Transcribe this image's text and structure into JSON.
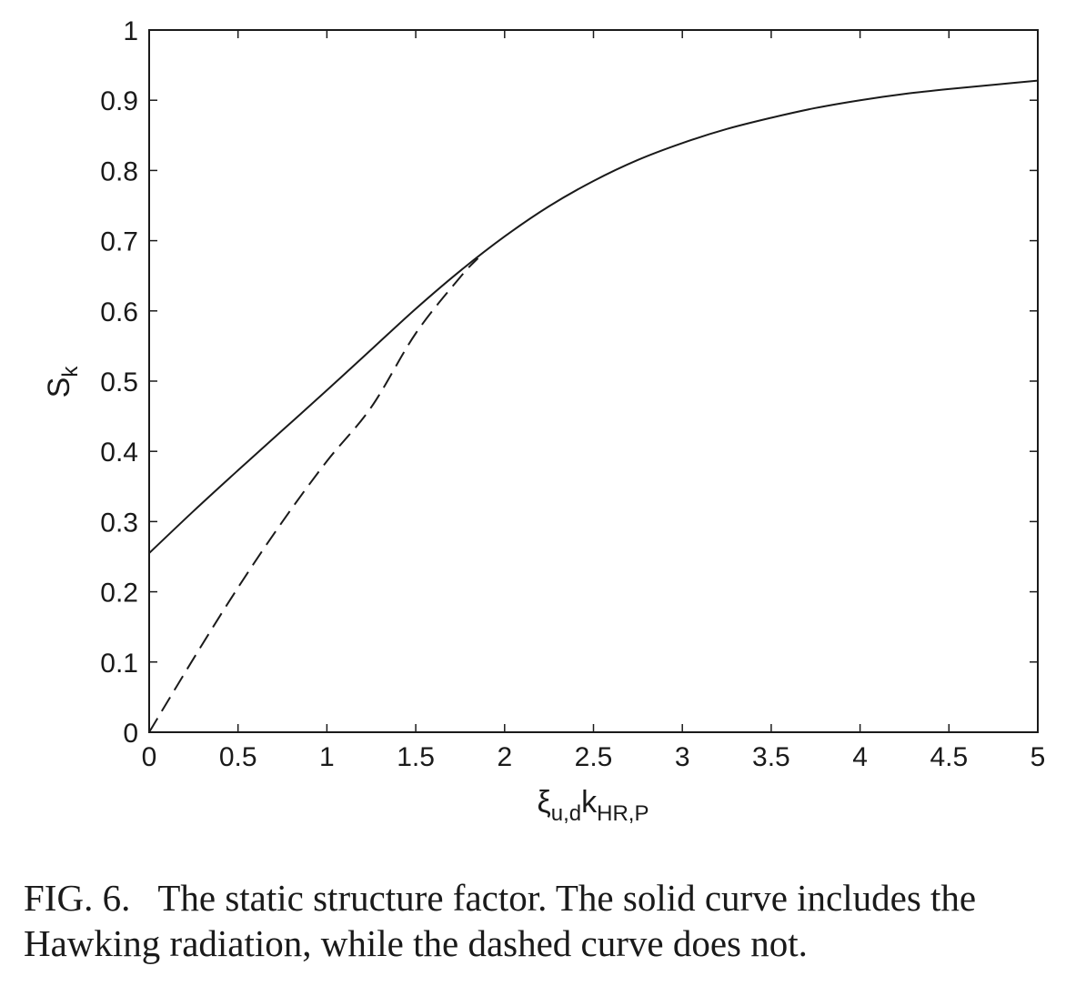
{
  "chart_data": {
    "type": "line",
    "title": "",
    "xlabel": {
      "base": "ξ",
      "sub1": "u,d",
      "mid": "k",
      "sub2": "HR,P"
    },
    "ylabel": {
      "base": "S",
      "sub": "k"
    },
    "xlim": [
      0,
      5
    ],
    "ylim": [
      0,
      1
    ],
    "xticks": [
      "0",
      "0.5",
      "1",
      "1.5",
      "2",
      "2.5",
      "3",
      "3.5",
      "4",
      "4.5",
      "5"
    ],
    "yticks": [
      "0",
      "0.1",
      "0.2",
      "0.3",
      "0.4",
      "0.5",
      "0.6",
      "0.7",
      "0.8",
      "0.9",
      "1"
    ],
    "grid": false,
    "series": [
      {
        "style": "solid",
        "x": [
          0,
          0.25,
          0.5,
          0.75,
          1.0,
          1.25,
          1.5,
          1.75,
          2.0,
          2.25,
          2.5,
          2.75,
          3.0,
          3.25,
          3.5,
          3.75,
          4.0,
          4.25,
          4.5,
          4.75,
          5.0
        ],
        "y": [
          0.255,
          0.315,
          0.373,
          0.43,
          0.487,
          0.545,
          0.603,
          0.657,
          0.706,
          0.749,
          0.785,
          0.815,
          0.839,
          0.859,
          0.875,
          0.889,
          0.9,
          0.909,
          0.916,
          0.922,
          0.928
        ]
      },
      {
        "style": "dashed",
        "x": [
          0,
          0.25,
          0.5,
          0.75,
          1.0,
          1.25,
          1.5,
          1.75,
          1.85
        ],
        "y": [
          0.0,
          0.105,
          0.206,
          0.3,
          0.386,
          0.463,
          0.568,
          0.648,
          0.675
        ]
      }
    ]
  },
  "caption": {
    "label": "FIG. 6.",
    "text": "The static structure factor. The solid curve includes the Hawking radiation, while the dashed curve does not."
  }
}
